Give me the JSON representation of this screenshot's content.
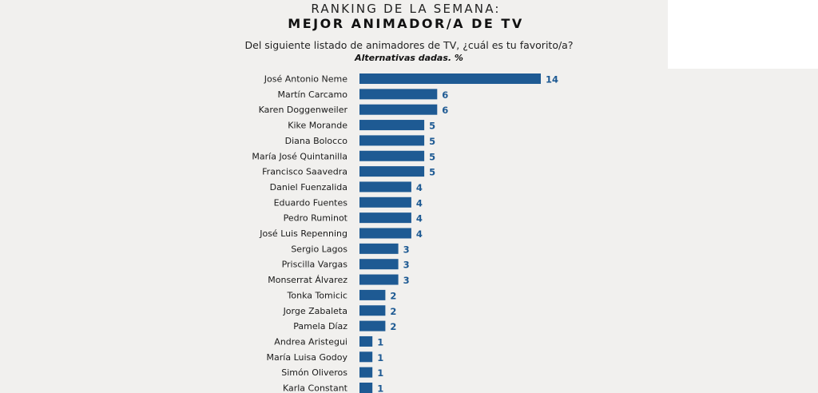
{
  "header": {
    "title_line1": "RANKING DE LA SEMANA:",
    "title_line2": "MEJOR ANIMADOR/A DE TV",
    "question": "Del siguiente listado de animadores de TV, ¿cuál es tu favorito/a?",
    "note": "Alternativas dadas. %"
  },
  "colors": {
    "bar": "#1e5a93",
    "value_label": "#1e5a93",
    "background": "#f1f0ee"
  },
  "chart_data": {
    "type": "bar",
    "orientation": "horizontal",
    "title": "MEJOR ANIMADOR/A DE TV",
    "subtitle": "Del siguiente listado de animadores de TV, ¿cuál es tu favorito/a?",
    "xlabel": "",
    "ylabel": "",
    "unit": "%",
    "xlim": [
      0,
      14
    ],
    "grid": false,
    "legend": "none",
    "categories": [
      "José Antonio Neme",
      "Martín Carcamo",
      "Karen Doggenweiler",
      "Kike Morande",
      "Diana Bolocco",
      "María José Quintanilla",
      "Francisco Saavedra",
      "Daniel Fuenzalida",
      "Eduardo Fuentes",
      "Pedro Ruminot",
      "José Luis Repenning",
      "Sergio Lagos",
      "Priscilla Vargas",
      "Monserrat Álvarez",
      "Tonka Tomicic",
      "Jorge Zabaleta",
      "Pamela Díaz",
      "Andrea Aristegui",
      "María Luisa Godoy",
      "Simón Oliveros",
      "Karla Constant"
    ],
    "values": [
      14,
      6,
      6,
      5,
      5,
      5,
      5,
      4,
      4,
      4,
      4,
      3,
      3,
      3,
      2,
      2,
      2,
      1,
      1,
      1,
      1
    ]
  }
}
